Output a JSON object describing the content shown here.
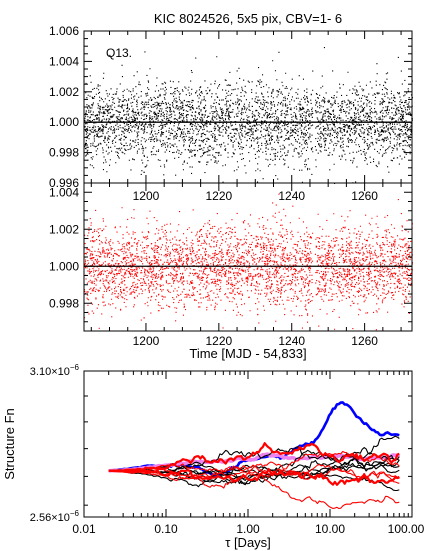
{
  "chart_data": [
    {
      "type": "scatter",
      "title": "KIC 8024526,  5x5 pix, CBV=1- 6",
      "annotation": "Q13.",
      "point_color": "#000000",
      "xlim": [
        1183,
        1273
      ],
      "ylim": [
        0.996,
        1.006
      ],
      "x_ticks": [
        1200,
        1220,
        1240,
        1260
      ],
      "y_tick_labels": [
        "1.006",
        "1.004",
        "1.002",
        "1.000",
        "0.998",
        "0.996"
      ],
      "y_ticks": [
        1.006,
        1.004,
        1.002,
        1.0,
        0.998,
        0.996
      ],
      "reference_line": 1.0,
      "x_range": [
        1183,
        1273
      ],
      "y_center": 1.0,
      "y_scatter_sigma": 0.0013,
      "n_points": 3600,
      "gap_at_x": 1246
    },
    {
      "type": "scatter",
      "point_color": "#ff0000",
      "xlim": [
        1183,
        1273
      ],
      "ylim": [
        0.9965,
        1.0045
      ],
      "x_ticks": [
        1200,
        1220,
        1240,
        1260
      ],
      "x_tick_labels": [
        "1200",
        "1220",
        "1240",
        "1260"
      ],
      "y_tick_labels": [
        "1.004",
        "1.002",
        "1.000",
        "0.998"
      ],
      "y_ticks": [
        1.004,
        1.002,
        1.0,
        0.998
      ],
      "xlabel": "Time [MJD - 54,833]",
      "reference_line": 1.0,
      "x_range": [
        1183,
        1273
      ],
      "y_center": 1.0,
      "y_scatter_sigma": 0.0011,
      "n_points": 3600,
      "gap_at_x": 1246
    },
    {
      "type": "line",
      "xscale": "log",
      "yscale": "log",
      "xlim": [
        0.01,
        100
      ],
      "ylim": [
        2.56e-06,
        3.1e-06
      ],
      "x_ticks": [
        0.01,
        0.1,
        1,
        10,
        100
      ],
      "x_tick_labels": [
        "0.01",
        "0.10",
        "1.00",
        "10.00",
        "100.00"
      ],
      "ylabel": "Structure Fn",
      "xlabel": "τ [Days]",
      "y_tick_labels": [
        {
          "mant": "3.10×10",
          "exp": "−6",
          "value": 3.1e-06
        },
        {
          "mant": "2.56×10",
          "exp": "−6",
          "value": 2.56e-06
        }
      ],
      "tau_range": [
        0.02,
        70
      ],
      "start_value": 2.72e-06,
      "series": [
        {
          "color": "#0000ff",
          "width": 2.6,
          "trend": 0.22,
          "noise": 0.05,
          "peak": 1.0
        },
        {
          "color": "#ee82ee",
          "width": 3.6,
          "trend": 0.1,
          "noise": 0.03
        },
        {
          "color": "#000000",
          "width": 1.1,
          "trend": 0.15,
          "noise": 0.07
        },
        {
          "color": "#000000",
          "width": 1.1,
          "trend": 0.08,
          "noise": 0.07
        },
        {
          "color": "#000000",
          "width": 1.1,
          "trend": 0.03,
          "noise": 0.06
        },
        {
          "color": "#000000",
          "width": 1.1,
          "trend": -0.03,
          "noise": 0.06
        },
        {
          "color": "#000000",
          "width": 1.1,
          "trend": -0.09,
          "noise": 0.06
        },
        {
          "color": "#000000",
          "width": 1.1,
          "trend": 0.12,
          "noise": 0.08
        },
        {
          "color": "#000000",
          "width": 1.1,
          "trend": -0.14,
          "noise": 0.06
        },
        {
          "color": "#ff0000",
          "width": 1.1,
          "trend": 0.02,
          "noise": 0.07
        },
        {
          "color": "#ff0000",
          "width": 1.1,
          "trend": -0.05,
          "noise": 0.07
        },
        {
          "color": "#ff0000",
          "width": 1.1,
          "trend": -0.12,
          "noise": 0.06
        },
        {
          "color": "#ff0000",
          "width": 1.1,
          "trend": -0.2,
          "noise": 0.06
        },
        {
          "color": "#ff0000",
          "width": 2.2,
          "trend": -0.02,
          "noise": 0.08
        },
        {
          "color": "#ff0000",
          "width": 2.2,
          "trend": 0.06,
          "noise": 0.08
        }
      ]
    }
  ]
}
